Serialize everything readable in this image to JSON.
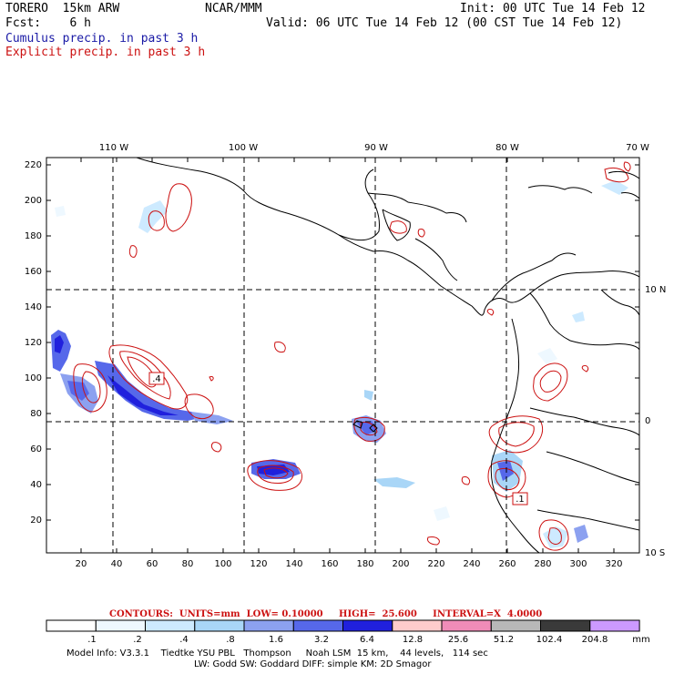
{
  "header": {
    "model_name": "TORERO  15km ARW",
    "org": "NCAR/MMM",
    "init": "Init: 00 UTC Tue 14 Feb 12",
    "forecast": "Fcst:    6 h",
    "valid": "Valid: 06 UTC Tue 14 Feb 12 (00 CST Tue 14 Feb 12)",
    "field_cumulus": "Cumulus precip. in past 3 h",
    "field_explicit": "Explicit precip. in past 3 h"
  },
  "axes": {
    "top_lon": [
      "110 W",
      "100 W",
      "90 W",
      "80 W",
      "70 W"
    ],
    "right_lat": [
      "10 N",
      "0",
      "10 S"
    ],
    "left_grid": [
      "220",
      "200",
      "180",
      "160",
      "140",
      "120",
      "100",
      "80",
      "60",
      "40",
      "20"
    ],
    "bottom_grid": [
      "20",
      "40",
      "60",
      "80",
      "100",
      "120",
      "140",
      "160",
      "180",
      "200",
      "220",
      "240",
      "260",
      "280",
      "300",
      "320"
    ]
  },
  "labels": {
    "high_box": ".4",
    "low_box": ".1"
  },
  "contour_info": "CONTOURS:  UNITS=mm  LOW= 0.10000     HIGH=  25.600     INTERVAL=X  4.0000",
  "colorbar": {
    "colors": [
      "#ffffff",
      "#eef8ff",
      "#cdeaff",
      "#a9d6f7",
      "#8ca1f0",
      "#5668ea",
      "#2020dd",
      "#ffcccc",
      "#f08cb8",
      "#b8b8b8",
      "#3a3a3a",
      "#cc99ff"
    ],
    "values": [
      ".1",
      ".2",
      ".4",
      ".8",
      "1.6",
      "3.2",
      "6.4",
      "12.8",
      "25.6",
      "51.2",
      "102.4",
      "204.8"
    ],
    "units": "mm"
  },
  "footer": {
    "line1": "Model Info: V3.3.1    Tiedtke YSU PBL   Thompson     Noah LSM  15 km,    44 levels,   114 sec",
    "line2": "LW: Godd SW: Goddard DIFF: simple KM: 2D Smagor"
  }
}
